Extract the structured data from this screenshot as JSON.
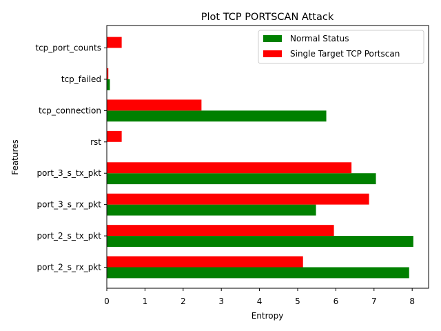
{
  "chart_data": {
    "type": "bar",
    "orientation": "horizontal",
    "title": "Plot TCP PORTSCAN Attack",
    "xlabel": "Entropy",
    "ylabel": "Features",
    "categories": [
      "port_2_s_rx_pkt",
      "port_2_s_tx_pkt",
      "port_3_s_rx_pkt",
      "port_3_s_tx_pkt",
      "rst",
      "tcp_connection",
      "tcp_failed",
      "tcp_port_counts"
    ],
    "series": [
      {
        "name": "Normal Status",
        "color": "#008000",
        "values": [
          7.92,
          8.03,
          5.48,
          7.05,
          0.0,
          5.75,
          0.08,
          0.0
        ]
      },
      {
        "name": "Single Target TCP Portscan",
        "color": "#ff0000",
        "values": [
          5.14,
          5.95,
          6.87,
          6.41,
          0.39,
          2.48,
          0.04,
          0.39
        ]
      }
    ],
    "xlim": [
      0,
      8.43
    ],
    "xticks": [
      "0",
      "1",
      "2",
      "3",
      "4",
      "5",
      "6",
      "7",
      "8"
    ],
    "grid": false,
    "legend_position": "top-right"
  }
}
